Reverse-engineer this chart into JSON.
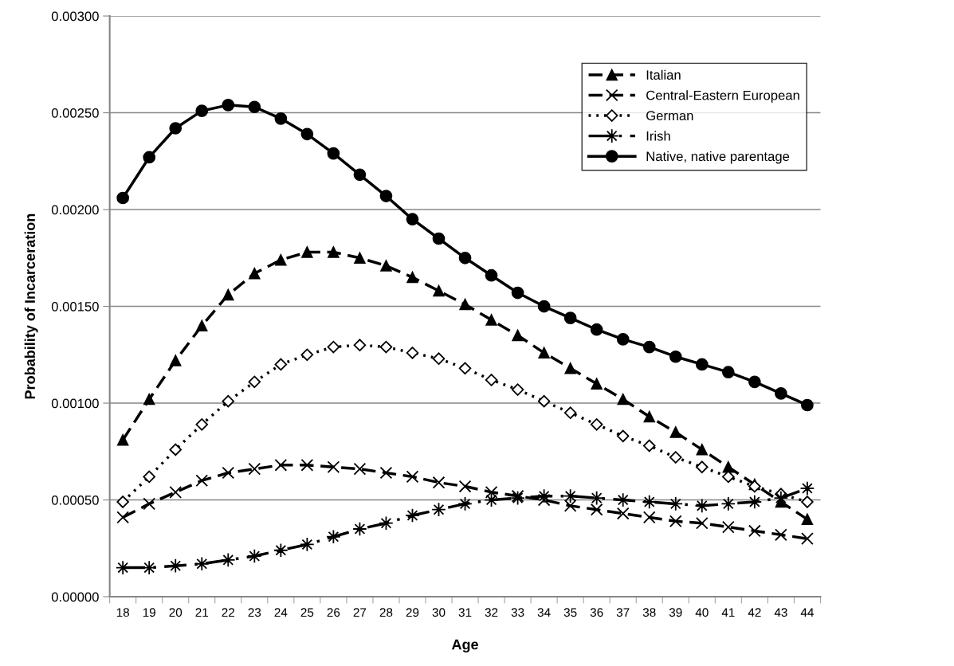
{
  "chart_data": {
    "type": "line",
    "xlabel": "Age",
    "ylabel": "Probability of Incarceration",
    "categories": [
      "18",
      "19",
      "20",
      "21",
      "22",
      "23",
      "24",
      "25",
      "26",
      "27",
      "28",
      "29",
      "30",
      "31",
      "32",
      "33",
      "34",
      "35",
      "36",
      "37",
      "38",
      "39",
      "40",
      "41",
      "42",
      "43",
      "44"
    ],
    "ylim": [
      0,
      0.003
    ],
    "yticks": [
      {
        "value": 0,
        "label": "0.00000"
      },
      {
        "value": 0.0005,
        "label": "0.00050"
      },
      {
        "value": 0.001,
        "label": "0.00100"
      },
      {
        "value": 0.0015,
        "label": "0.00150"
      },
      {
        "value": 0.002,
        "label": "0.00200"
      },
      {
        "value": 0.0025,
        "label": "0.00250"
      },
      {
        "value": 0.003,
        "label": "0.00300"
      }
    ],
    "grid": "y",
    "legend": "top right",
    "series": [
      {
        "name": "Italian",
        "color": "#000000",
        "marker": "triangle",
        "line_style": "dashed",
        "values": [
          0.00081,
          0.00102,
          0.00122,
          0.0014,
          0.00156,
          0.00167,
          0.00174,
          0.00178,
          0.00178,
          0.00175,
          0.00171,
          0.00165,
          0.00158,
          0.00151,
          0.00143,
          0.00135,
          0.00126,
          0.00118,
          0.0011,
          0.00102,
          0.00093,
          0.00085,
          0.00076,
          0.00067,
          0.00058,
          0.00049,
          0.0004
        ]
      },
      {
        "name": "Central-Eastern European",
        "color": "#000000",
        "marker": "cross",
        "line_style": "dashed",
        "values": [
          0.00041,
          0.00048,
          0.00054,
          0.0006,
          0.00064,
          0.00066,
          0.00068,
          0.00068,
          0.00067,
          0.00066,
          0.00064,
          0.00062,
          0.00059,
          0.00057,
          0.00054,
          0.00052,
          0.0005,
          0.00047,
          0.00045,
          0.00043,
          0.00041,
          0.00039,
          0.00038,
          0.00036,
          0.00034,
          0.00032,
          0.0003
        ]
      },
      {
        "name": "German",
        "color": "#000000",
        "marker": "diamond",
        "line_style": "dotted",
        "values": [
          0.00049,
          0.00062,
          0.00076,
          0.00089,
          0.00101,
          0.00111,
          0.0012,
          0.00125,
          0.00129,
          0.0013,
          0.00129,
          0.00126,
          0.00123,
          0.00118,
          0.00112,
          0.00107,
          0.00101,
          0.00095,
          0.00089,
          0.00083,
          0.00078,
          0.00072,
          0.00067,
          0.00062,
          0.00057,
          0.00053,
          0.00049
        ]
      },
      {
        "name": "Irish",
        "color": "#000000",
        "marker": "star",
        "line_style": "dashdot",
        "values": [
          0.00015,
          0.00015,
          0.00016,
          0.00017,
          0.00019,
          0.00021,
          0.00024,
          0.00027,
          0.00031,
          0.00035,
          0.00038,
          0.00042,
          0.00045,
          0.00048,
          0.0005,
          0.00051,
          0.00052,
          0.00052,
          0.00051,
          0.0005,
          0.00049,
          0.00048,
          0.00047,
          0.00048,
          0.00049,
          0.00051,
          0.00056
        ]
      },
      {
        "name": "Native, native parentage",
        "color": "#000000",
        "marker": "circle",
        "line_style": "solid",
        "values": [
          0.00206,
          0.00227,
          0.00242,
          0.00251,
          0.00254,
          0.00253,
          0.00247,
          0.00239,
          0.00229,
          0.00218,
          0.00207,
          0.00195,
          0.00185,
          0.00175,
          0.00166,
          0.00157,
          0.0015,
          0.00144,
          0.00138,
          0.00133,
          0.00129,
          0.00124,
          0.0012,
          0.00116,
          0.00111,
          0.00105,
          0.00099
        ]
      }
    ]
  }
}
